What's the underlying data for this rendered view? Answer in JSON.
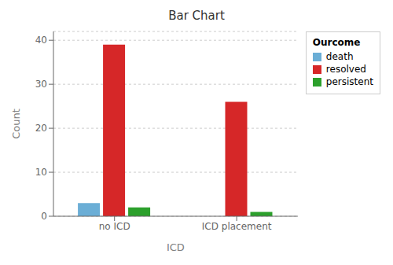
{
  "chart_data": {
    "type": "bar",
    "title": "Bar Chart",
    "x_label": "ICD",
    "y_label": "Count",
    "legend_title": "Ourcome",
    "categories": [
      "no ICD",
      "ICD placement"
    ],
    "series": [
      {
        "name": "death",
        "color": "#6baed6",
        "values": [
          3,
          0
        ]
      },
      {
        "name": "resolved",
        "color": "#d62728",
        "values": [
          39,
          26
        ]
      },
      {
        "name": "persistent",
        "color": "#2ca02c",
        "values": [
          2,
          1
        ]
      }
    ],
    "ylim": [
      0,
      42
    ],
    "yticks": [
      0,
      10,
      20,
      30,
      40
    ],
    "grid": true,
    "legend": "upper right"
  }
}
